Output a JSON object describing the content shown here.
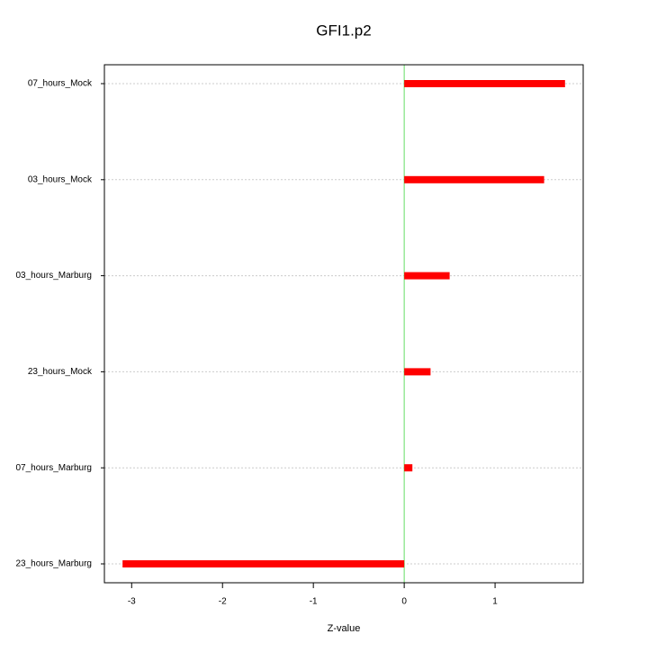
{
  "chart_data": {
    "type": "hbar",
    "title": "GFI1.p2",
    "x_label": "Z-value",
    "categories": [
      "07_hours_Mock",
      "03_hours_Mock",
      "03_hours_Marburg",
      "23_hours_Mock",
      "07_hours_Marburg",
      "23_hours_Marburg"
    ],
    "values": [
      1.77,
      1.54,
      0.5,
      0.29,
      0.09,
      -3.1
    ],
    "color": "#ff0000",
    "reference_line": 0,
    "reference_color": "#66dd66",
    "xlim": [
      -3.3,
      1.97
    ],
    "xticks": [
      -3,
      -2,
      -1,
      0,
      1
    ],
    "grid": true
  }
}
